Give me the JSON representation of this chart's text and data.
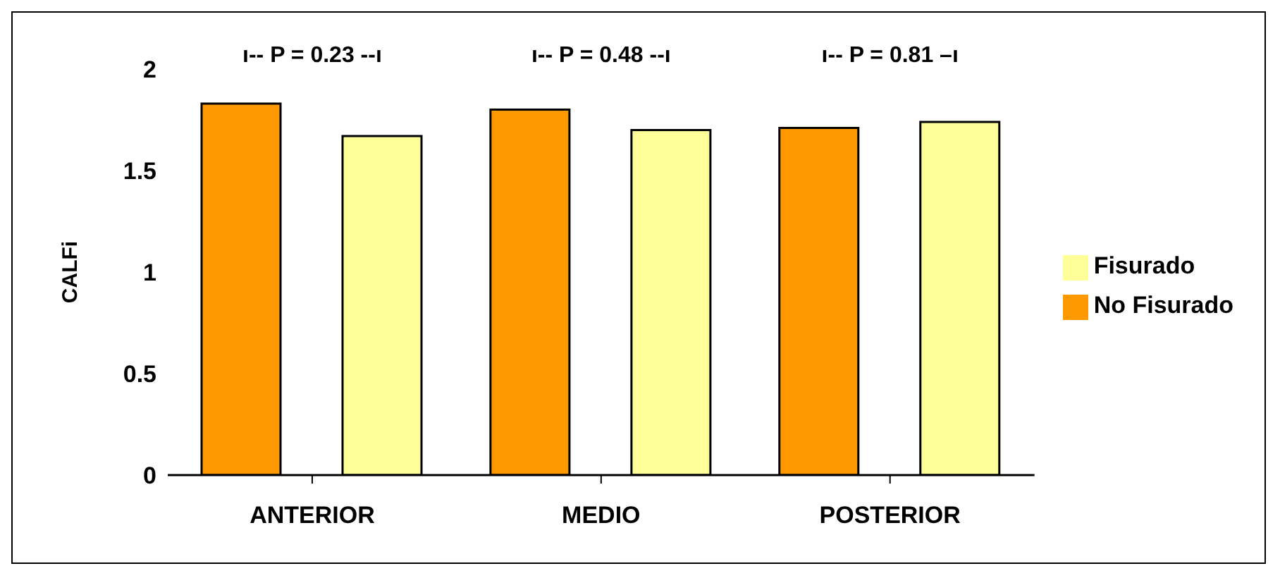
{
  "chart_data": {
    "type": "bar",
    "ylabel": "CALFi",
    "categories": [
      "ANTERIOR",
      "MEDIO",
      "POSTERIOR"
    ],
    "series": [
      {
        "name": "No Fisurado",
        "color": "#ff9900",
        "values": [
          1.83,
          1.8,
          1.71
        ]
      },
      {
        "name": "Fisurado",
        "color": "#ffff99",
        "values": [
          1.67,
          1.7,
          1.74
        ]
      }
    ],
    "ylim": [
      0,
      2
    ],
    "yticks": [
      0,
      0.5,
      1,
      1.5,
      2
    ],
    "grid": false,
    "legend": "right",
    "annotations": [
      "ı-- P = 0.23 --ı",
      "ı-- P = 0.48 --ı",
      "ı-- P = 0.81 –ı"
    ]
  }
}
